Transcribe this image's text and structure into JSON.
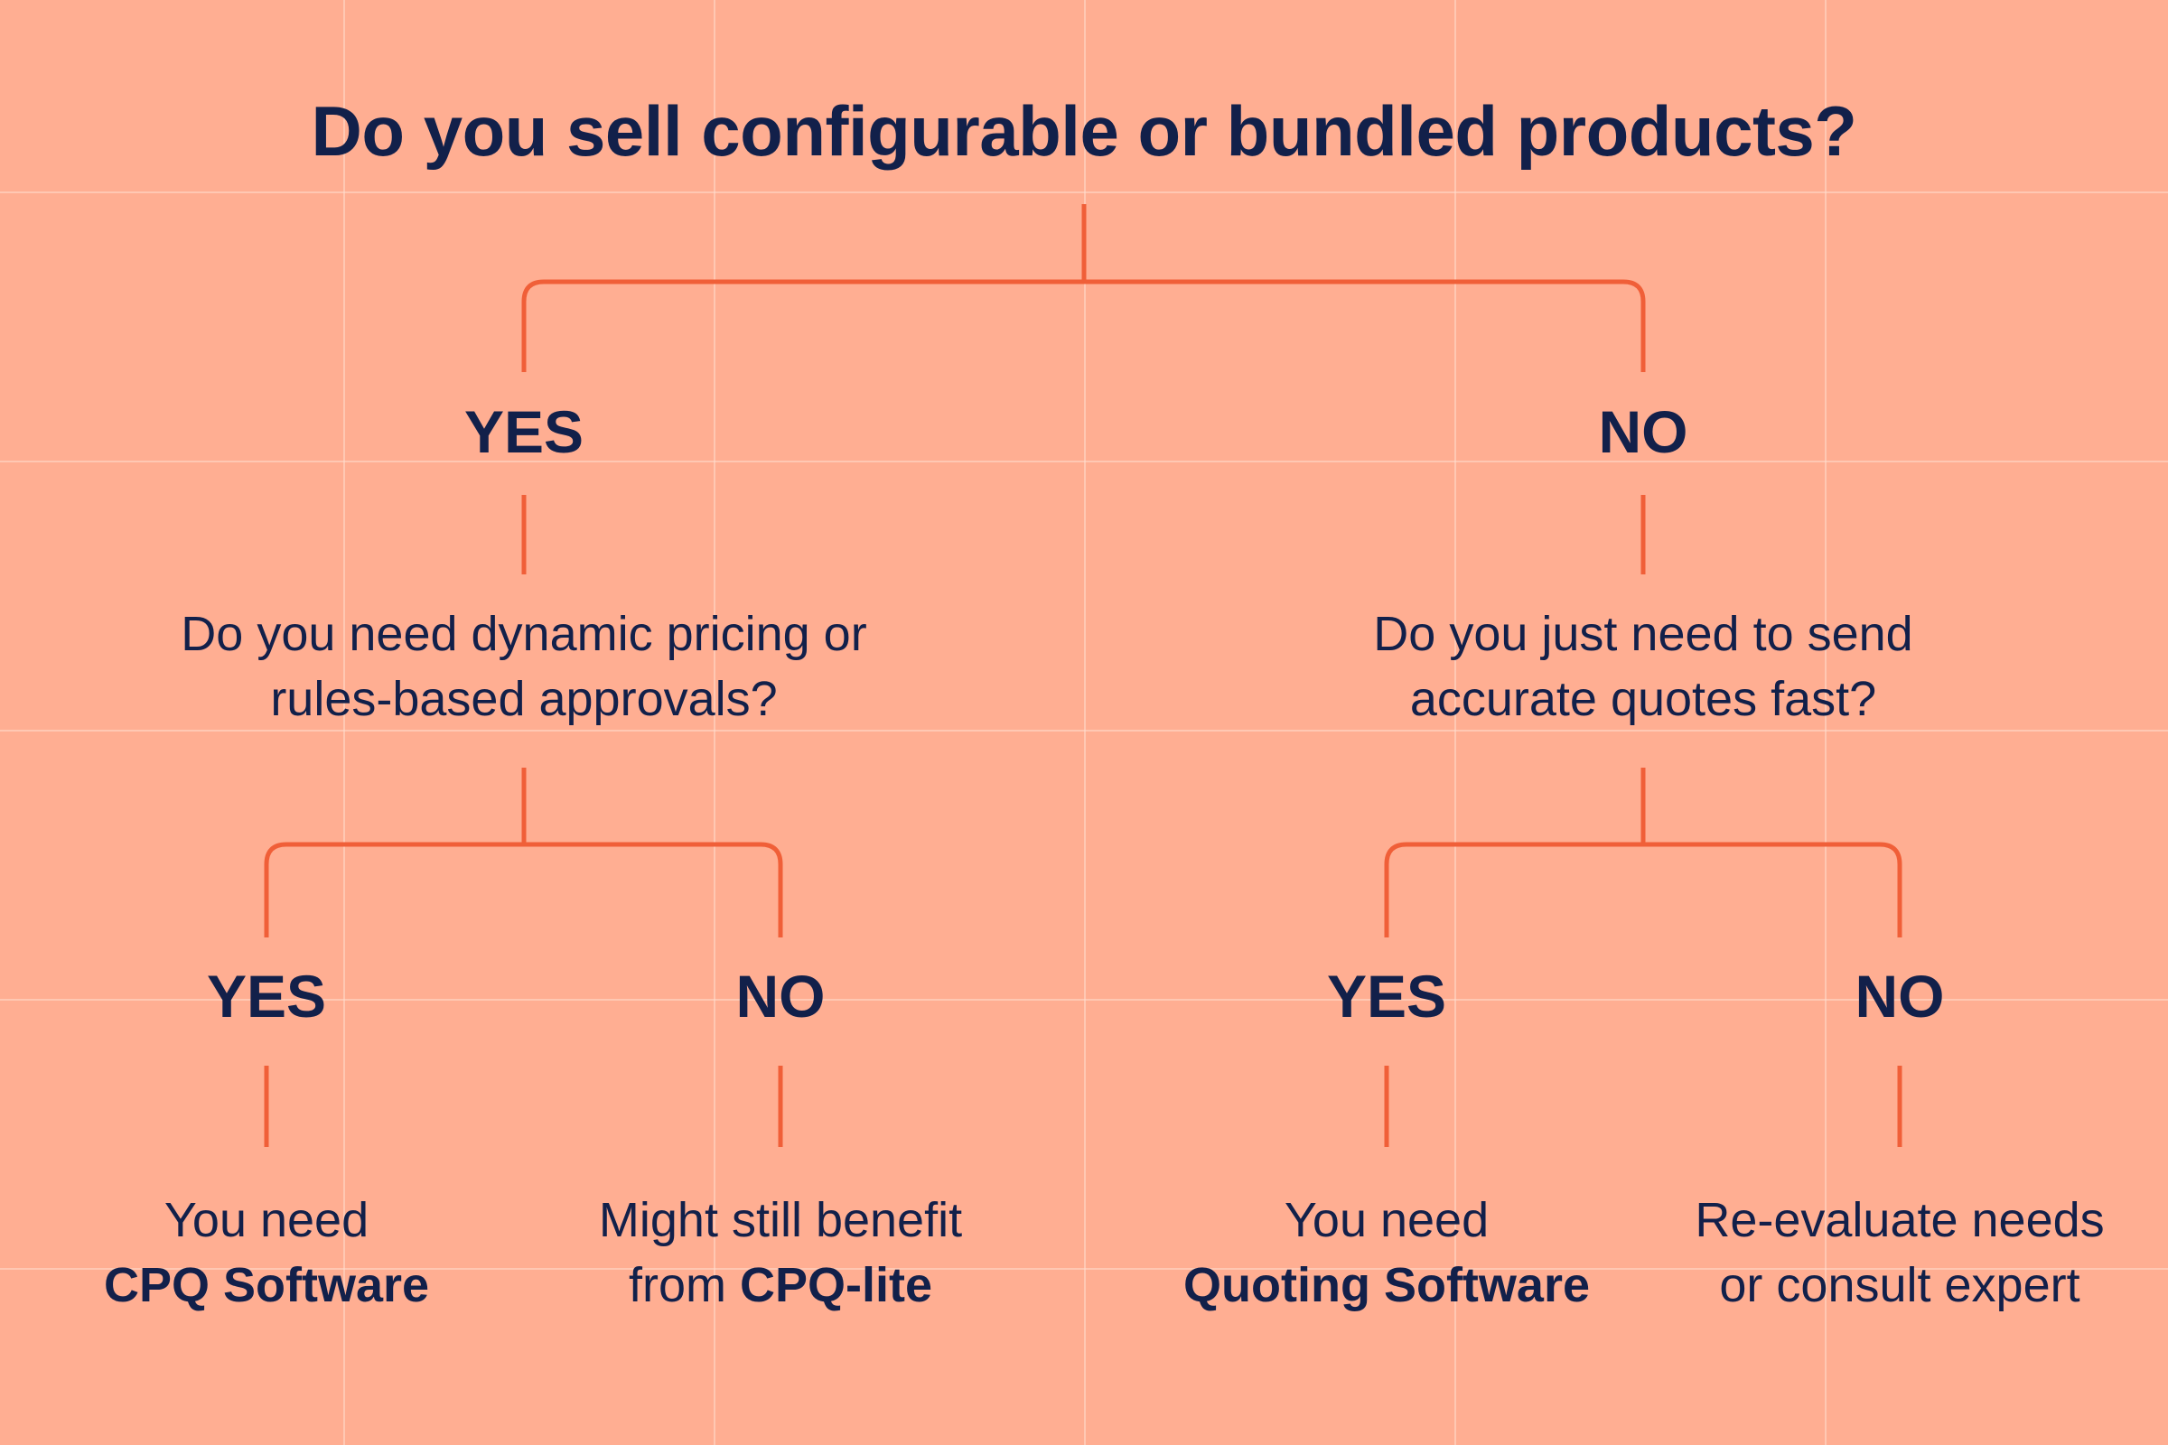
{
  "colors": {
    "background": "#ffae92",
    "grid": "#ffdecd",
    "connector": "#f05f38",
    "text": "#12204a"
  },
  "title": "Do you sell configurable or bundled products?",
  "left": {
    "answer": "YES",
    "question_line1": "Do you need dynamic pricing or",
    "question_line2": "rules-based approvals?",
    "yes": {
      "answer": "YES",
      "outcome_line1": "You need",
      "outcome_line2_bold": "CPQ Software"
    },
    "no": {
      "answer": "NO",
      "outcome_line1": "Might still benefit",
      "outcome_line2_prefix": "from ",
      "outcome_line2_bold": "CPQ-lite"
    }
  },
  "right": {
    "answer": "NO",
    "question_line1": "Do you just need to send",
    "question_line2": "accurate quotes fast?",
    "yes": {
      "answer": "YES",
      "outcome_line1": "You need",
      "outcome_line2_bold": "Quoting Software"
    },
    "no": {
      "answer": "NO",
      "outcome_line1": "Re-evaluate needs",
      "outcome_line2": "or consult expert"
    }
  }
}
